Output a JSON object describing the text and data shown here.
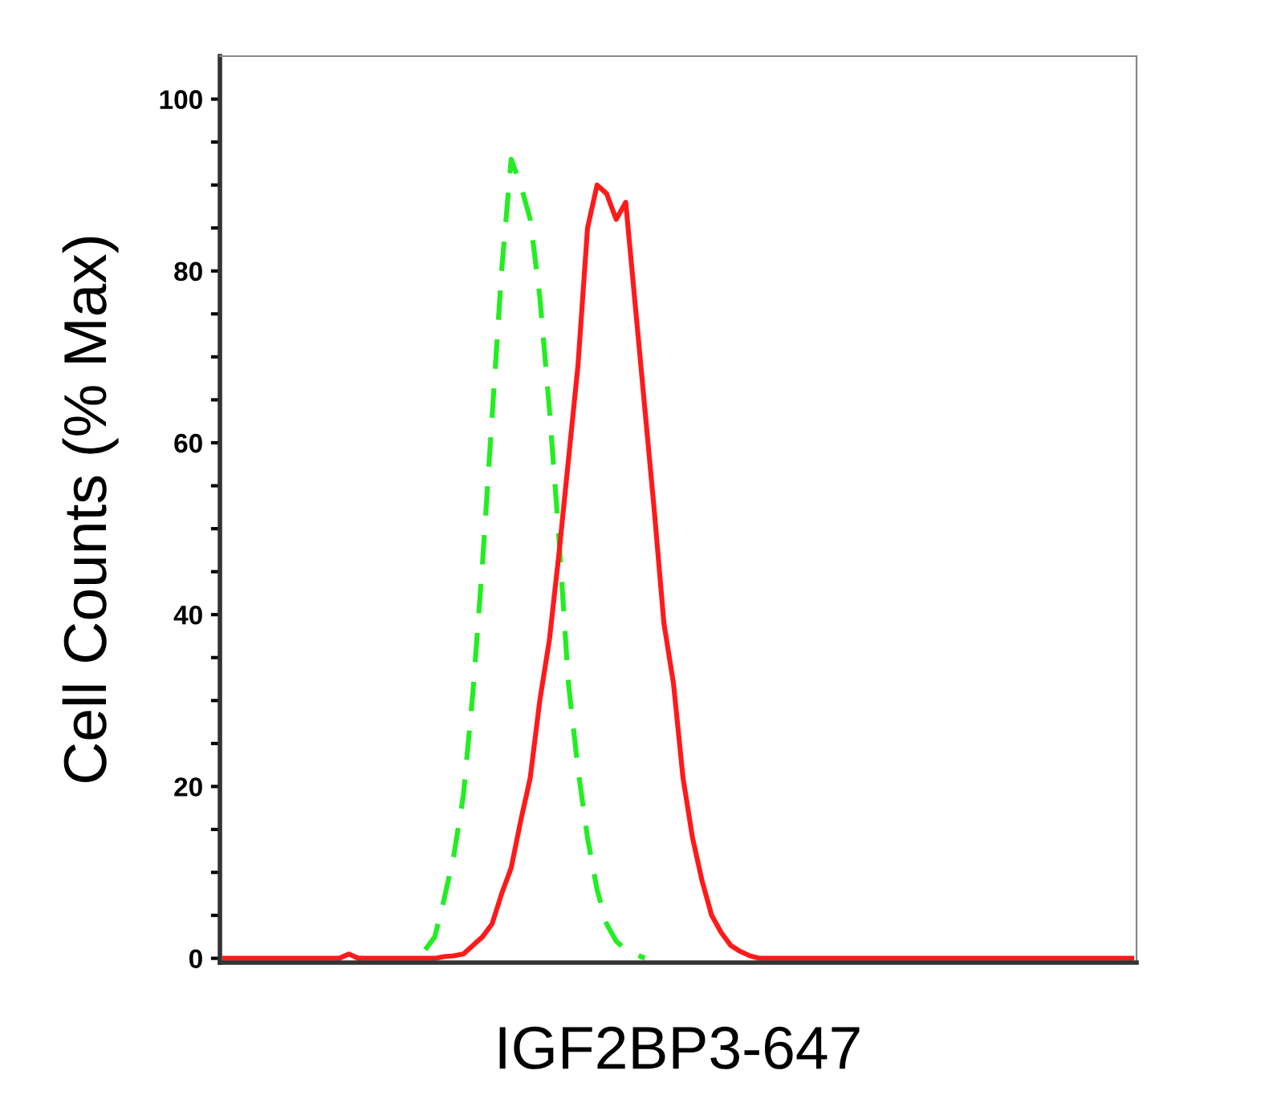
{
  "chart_data": {
    "type": "line",
    "xlabel": "IGF2BP3-647",
    "ylabel": "Cell Counts (% Max)",
    "categories": [
      null,
      null,
      null,
      null,
      null,
      null,
      null,
      null,
      null,
      null,
      null,
      null,
      null,
      null,
      null,
      null,
      null,
      null,
      null,
      null,
      null,
      null,
      null,
      null,
      null,
      null,
      null,
      null,
      null,
      null,
      null,
      null,
      null,
      null,
      null,
      null,
      null,
      null,
      null,
      null,
      null,
      null,
      null,
      null,
      null,
      null,
      null,
      null,
      null,
      null,
      null,
      null,
      null,
      null,
      null,
      null,
      null,
      null,
      null,
      null,
      null,
      null,
      null,
      null,
      null,
      null,
      null,
      null,
      null,
      null,
      null,
      null,
      null,
      null,
      null,
      null,
      null,
      null,
      null,
      null,
      null,
      null,
      null,
      null,
      null,
      null,
      null,
      null,
      null,
      null,
      null,
      null,
      null,
      null,
      null,
      null
    ],
    "series": [
      {
        "color": "#22ee22",
        "line_style": "dashed",
        "values": [
          null,
          null,
          null,
          null,
          null,
          null,
          null,
          null,
          null,
          null,
          null,
          null,
          null,
          null,
          null,
          null,
          null,
          null,
          null,
          null,
          null,
          1,
          2.5,
          7,
          12,
          19,
          31,
          46,
          63,
          80,
          93,
          90,
          86,
          77,
          64,
          49,
          32,
          22,
          14,
          8,
          4,
          2,
          1,
          0.5,
          0,
          null,
          null,
          null,
          null,
          null,
          null,
          null,
          null,
          null,
          null,
          null,
          null,
          null,
          null,
          null,
          null,
          null,
          null,
          null,
          null,
          null,
          null,
          null,
          null,
          null,
          null,
          null,
          null,
          null,
          null,
          null,
          null,
          null,
          null,
          null,
          null,
          null,
          null,
          null,
          null,
          null,
          null,
          null,
          null,
          null,
          null,
          null,
          null,
          null,
          null,
          null
        ]
      },
      {
        "color": "#ff1a1a",
        "line_style": "solid",
        "values": [
          0,
          0,
          0,
          0,
          0,
          0,
          0,
          0,
          0,
          0,
          0,
          0,
          0,
          0.5,
          0,
          0,
          0,
          0,
          0,
          0,
          0,
          0,
          0,
          0.2,
          0.3,
          0.5,
          1.5,
          2.5,
          4,
          7.5,
          10.5,
          16,
          21,
          30,
          37,
          47,
          58,
          69,
          85,
          90,
          89,
          86,
          88,
          76,
          64,
          52,
          39,
          32,
          21,
          14,
          9,
          5,
          3,
          1.5,
          0.8,
          0.3,
          0,
          0,
          0,
          0,
          0,
          0,
          0,
          0,
          0,
          0,
          0,
          0,
          0,
          0,
          0,
          0,
          0,
          0,
          0,
          0,
          0,
          0,
          0,
          0,
          0,
          0,
          0,
          0,
          0,
          0,
          0,
          0,
          0,
          0,
          0,
          0,
          0,
          0,
          0,
          0
        ]
      }
    ],
    "ylim": [
      -0.5,
      105
    ],
    "yticks": [
      0,
      {
        "value": 5,
        "label": null
      },
      {
        "value": 10,
        "label": null
      },
      {
        "value": 15,
        "label": null
      },
      20,
      {
        "value": 25,
        "label": null
      },
      {
        "value": 30,
        "label": null
      },
      {
        "value": 35,
        "label": null
      },
      40,
      {
        "value": 45,
        "label": null
      },
      {
        "value": 50,
        "label": null
      },
      {
        "value": 55,
        "label": null
      },
      60,
      {
        "value": 65,
        "label": null
      },
      {
        "value": 70,
        "label": null
      },
      {
        "value": 75,
        "label": null
      },
      80,
      {
        "value": 85,
        "label": null
      },
      {
        "value": 90,
        "label": null
      },
      {
        "value": 95,
        "label": null
      },
      100
    ],
    "tick_labels": "y",
    "grid": false,
    "legend": false
  }
}
